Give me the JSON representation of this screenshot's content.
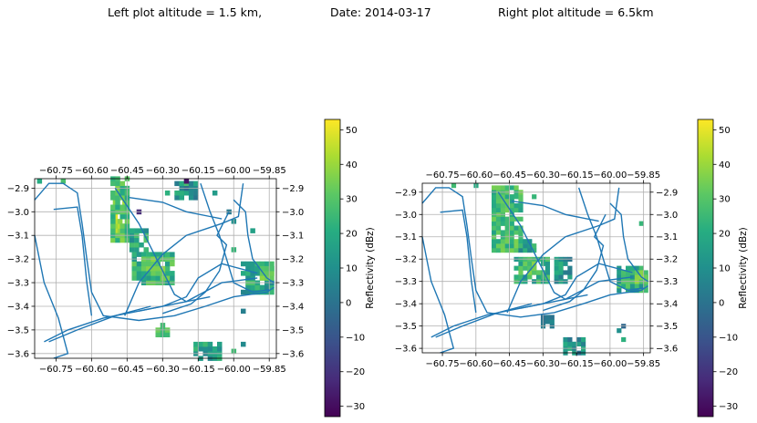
{
  "titles": {
    "left": "Left plot altitude = 1.5 km,",
    "date": "Date: 2014-03-17",
    "right": "Right plot altitude = 6.5km"
  },
  "colorbar": {
    "label": "Reflectivity (dBz)",
    "ticks": [
      -30,
      -20,
      -10,
      0,
      10,
      20,
      30,
      40,
      50
    ],
    "range": [
      -33,
      53
    ],
    "colormap": "viridis"
  },
  "chart_data": [
    {
      "type": "heatmap",
      "name": "left",
      "altitude_km": 1.5,
      "xlim": [
        -60.84,
        -59.82
      ],
      "ylim": [
        -3.62,
        -2.86
      ],
      "xticks": [
        -60.75,
        -60.6,
        -60.45,
        -60.3,
        -60.15,
        -60.0,
        -59.85
      ],
      "xtick_labels": [
        "−60.75",
        "−60.60",
        "−60.45",
        "−60.30",
        "−60.15",
        "−60.00",
        "−59.85"
      ],
      "yticks": [
        -2.9,
        -3.0,
        -3.1,
        -3.2,
        -3.3,
        -3.4,
        -3.5,
        -3.6
      ],
      "ytick_labels": [
        "−2.9",
        "−3.0",
        "−3.1",
        "−3.2",
        "−3.3",
        "−3.4",
        "−3.5",
        "−3.6"
      ],
      "grid": true,
      "cell_size_deg": 0.02,
      "blobs": [
        {
          "x": [
            -60.5,
            -60.45
          ],
          "y": [
            -3.08,
            -2.93
          ],
          "value": 44,
          "spread": 7
        },
        {
          "x": [
            -60.51,
            -60.44
          ],
          "y": [
            -3.12,
            -2.86
          ],
          "value": 28,
          "spread": 10
        },
        {
          "x": [
            -60.43,
            -60.36
          ],
          "y": [
            -3.16,
            -3.08
          ],
          "value": 18,
          "spread": 12
        },
        {
          "x": [
            -60.42,
            -60.25
          ],
          "y": [
            -3.3,
            -3.18
          ],
          "value": 24,
          "spread": 12
        },
        {
          "x": [
            -60.38,
            -60.3
          ],
          "y": [
            -3.26,
            -3.2
          ],
          "value": 36,
          "spread": 6
        },
        {
          "x": [
            -59.96,
            -59.83
          ],
          "y": [
            -3.34,
            -3.22
          ],
          "value": 18,
          "spread": 12
        },
        {
          "x": [
            -59.88,
            -59.83
          ],
          "y": [
            -3.28,
            -3.24
          ],
          "value": 34,
          "spread": 6
        },
        {
          "x": [
            -60.16,
            -60.06
          ],
          "y": [
            -3.62,
            -3.56
          ],
          "value": 16,
          "spread": 10
        },
        {
          "x": [
            -60.32,
            -60.28
          ],
          "y": [
            -3.52,
            -3.48
          ],
          "value": 28,
          "spread": 6
        },
        {
          "x": [
            -60.24,
            -60.16
          ],
          "y": [
            -2.94,
            -2.88
          ],
          "value": 12,
          "spread": 16
        }
      ],
      "isolated_cells": [
        {
          "x": -60.82,
          "y": -2.87,
          "value": 20
        },
        {
          "x": -60.72,
          "y": -2.87,
          "value": 28
        },
        {
          "x": -60.2,
          "y": -2.87,
          "value": -28
        },
        {
          "x": -60.28,
          "y": -2.92,
          "value": 22
        },
        {
          "x": -60.08,
          "y": -2.92,
          "value": 14
        },
        {
          "x": -60.02,
          "y": -3.0,
          "value": 2
        },
        {
          "x": -60.0,
          "y": -3.04,
          "value": 10
        },
        {
          "x": -59.92,
          "y": -3.08,
          "value": 16
        },
        {
          "x": -60.0,
          "y": -3.16,
          "value": 24
        },
        {
          "x": -59.96,
          "y": -3.42,
          "value": 4
        },
        {
          "x": -59.96,
          "y": -3.56,
          "value": 8
        },
        {
          "x": -60.0,
          "y": -3.59,
          "value": 26
        },
        {
          "x": -60.4,
          "y": -3.0,
          "value": -22
        }
      ],
      "tracks": [
        [
          [
            -60.84,
            -2.95
          ],
          [
            -60.78,
            -2.88
          ],
          [
            -60.72,
            -2.88
          ],
          [
            -60.66,
            -2.92
          ],
          [
            -60.64,
            -3.05
          ],
          [
            -60.62,
            -3.2
          ],
          [
            -60.6,
            -3.34
          ],
          [
            -60.55,
            -3.44
          ],
          [
            -60.4,
            -3.46
          ],
          [
            -60.25,
            -3.44
          ],
          [
            -60.12,
            -3.4
          ],
          [
            -60.0,
            -3.36
          ],
          [
            -59.86,
            -3.34
          ],
          [
            -59.83,
            -3.32
          ]
        ],
        [
          [
            -60.76,
            -2.99
          ],
          [
            -60.66,
            -2.98
          ],
          [
            -60.64,
            -3.1
          ],
          [
            -60.62,
            -3.3
          ],
          [
            -60.6,
            -3.44
          ]
        ],
        [
          [
            -60.84,
            -3.1
          ],
          [
            -60.8,
            -3.3
          ],
          [
            -60.74,
            -3.45
          ],
          [
            -60.7,
            -3.6
          ],
          [
            -60.76,
            -3.62
          ]
        ],
        [
          [
            -60.8,
            -3.55
          ],
          [
            -60.7,
            -3.5
          ],
          [
            -60.55,
            -3.45
          ],
          [
            -60.4,
            -3.42
          ],
          [
            -60.2,
            -3.38
          ],
          [
            -60.05,
            -3.3
          ],
          [
            -59.9,
            -3.28
          ]
        ],
        [
          [
            -60.46,
            -3.44
          ],
          [
            -60.4,
            -3.3
          ],
          [
            -60.3,
            -3.18
          ],
          [
            -60.2,
            -3.1
          ],
          [
            -60.05,
            -3.05
          ],
          [
            -59.98,
            -3.02
          ],
          [
            -59.96,
            -2.88
          ]
        ],
        [
          [
            -60.5,
            -2.9
          ],
          [
            -60.4,
            -3.05
          ],
          [
            -60.35,
            -3.15
          ],
          [
            -60.3,
            -3.25
          ],
          [
            -60.25,
            -3.35
          ],
          [
            -60.2,
            -3.38
          ],
          [
            -60.1,
            -3.36
          ]
        ],
        [
          [
            -60.14,
            -2.88
          ],
          [
            -60.1,
            -3.0
          ],
          [
            -60.06,
            -3.1
          ],
          [
            -60.03,
            -3.2
          ],
          [
            -60.0,
            -3.3
          ],
          [
            -59.92,
            -3.34
          ],
          [
            -59.85,
            -3.33
          ]
        ],
        [
          [
            -60.44,
            -2.94
          ],
          [
            -60.3,
            -2.96
          ],
          [
            -60.2,
            -3.0
          ],
          [
            -60.1,
            -3.02
          ],
          [
            -60.05,
            -3.03
          ]
        ],
        [
          [
            -60.4,
            -3.42
          ],
          [
            -60.3,
            -3.4
          ],
          [
            -60.2,
            -3.36
          ],
          [
            -60.15,
            -3.28
          ],
          [
            -60.05,
            -3.22
          ],
          [
            -59.9,
            -3.26
          ]
        ],
        [
          [
            -60.78,
            -3.55
          ],
          [
            -60.66,
            -3.5
          ],
          [
            -60.5,
            -3.44
          ],
          [
            -60.35,
            -3.4
          ]
        ],
        [
          [
            -60.3,
            -3.43
          ],
          [
            -60.18,
            -3.39
          ],
          [
            -60.12,
            -3.34
          ],
          [
            -60.06,
            -3.25
          ],
          [
            -60.03,
            -3.14
          ],
          [
            -60.07,
            -3.1
          ],
          [
            -60.02,
            -3.0
          ]
        ],
        [
          [
            -60.0,
            -2.95
          ],
          [
            -59.95,
            -3.0
          ],
          [
            -59.94,
            -3.1
          ],
          [
            -59.92,
            -3.2
          ],
          [
            -59.86,
            -3.28
          ],
          [
            -59.83,
            -3.3
          ]
        ]
      ]
    },
    {
      "type": "heatmap",
      "name": "right",
      "altitude_km": 6.5,
      "xlim": [
        -60.84,
        -59.82
      ],
      "ylim": [
        -3.62,
        -2.86
      ],
      "xticks": [
        -60.75,
        -60.6,
        -60.45,
        -60.3,
        -60.15,
        -60.0,
        -59.85
      ],
      "xtick_labels": [
        "−60.75",
        "−60.60",
        "−60.45",
        "−60.30",
        "−60.15",
        "−60.00",
        "−59.85"
      ],
      "yticks": [
        -2.9,
        -3.0,
        -3.1,
        -3.2,
        -3.3,
        -3.4,
        -3.5,
        -3.6
      ],
      "ytick_labels": [
        "−2.9",
        "−3.0",
        "−3.1",
        "−3.2",
        "−3.3",
        "−3.4",
        "−3.5",
        "−3.6"
      ],
      "grid": true,
      "cell_size_deg": 0.02,
      "blobs": [
        {
          "x": [
            -60.5,
            -60.44
          ],
          "y": [
            -3.06,
            -2.92
          ],
          "value": 40,
          "spread": 8
        },
        {
          "x": [
            -60.52,
            -60.4
          ],
          "y": [
            -3.16,
            -2.88
          ],
          "value": 26,
          "spread": 10
        },
        {
          "x": [
            -60.4,
            -60.33
          ],
          "y": [
            -3.16,
            -3.1
          ],
          "value": 16,
          "spread": 12
        },
        {
          "x": [
            -60.42,
            -60.28
          ],
          "y": [
            -3.3,
            -3.2
          ],
          "value": 22,
          "spread": 12
        },
        {
          "x": [
            -60.36,
            -60.3
          ],
          "y": [
            -3.26,
            -3.22
          ],
          "value": 32,
          "spread": 6
        },
        {
          "x": [
            -60.24,
            -60.18
          ],
          "y": [
            -3.3,
            -3.2
          ],
          "value": 12,
          "spread": 12
        },
        {
          "x": [
            -59.96,
            -59.83
          ],
          "y": [
            -3.34,
            -3.24
          ],
          "value": 20,
          "spread": 12
        },
        {
          "x": [
            -59.88,
            -59.83
          ],
          "y": [
            -3.3,
            -3.25
          ],
          "value": 36,
          "spread": 6
        },
        {
          "x": [
            -60.2,
            -60.12
          ],
          "y": [
            -3.62,
            -3.56
          ],
          "value": 10,
          "spread": 12
        },
        {
          "x": [
            -60.3,
            -60.26
          ],
          "y": [
            -3.5,
            -3.46
          ],
          "value": 6,
          "spread": 8
        }
      ],
      "isolated_cells": [
        {
          "x": -60.7,
          "y": -2.87,
          "value": 26
        },
        {
          "x": -60.6,
          "y": -2.87,
          "value": 20
        },
        {
          "x": -60.34,
          "y": -2.92,
          "value": 24
        },
        {
          "x": -59.86,
          "y": -3.04,
          "value": 24
        },
        {
          "x": -59.96,
          "y": -3.52,
          "value": 10
        },
        {
          "x": -59.94,
          "y": -3.56,
          "value": 22
        },
        {
          "x": -59.94,
          "y": -3.5,
          "value": -4
        }
      ],
      "tracks": [
        [
          [
            -60.84,
            -2.95
          ],
          [
            -60.78,
            -2.88
          ],
          [
            -60.72,
            -2.88
          ],
          [
            -60.66,
            -2.92
          ],
          [
            -60.64,
            -3.05
          ],
          [
            -60.62,
            -3.2
          ],
          [
            -60.6,
            -3.34
          ],
          [
            -60.55,
            -3.44
          ],
          [
            -60.4,
            -3.46
          ],
          [
            -60.25,
            -3.44
          ],
          [
            -60.12,
            -3.4
          ],
          [
            -60.0,
            -3.36
          ],
          [
            -59.86,
            -3.34
          ],
          [
            -59.83,
            -3.32
          ]
        ],
        [
          [
            -60.76,
            -2.99
          ],
          [
            -60.66,
            -2.98
          ],
          [
            -60.64,
            -3.1
          ],
          [
            -60.62,
            -3.3
          ],
          [
            -60.6,
            -3.44
          ]
        ],
        [
          [
            -60.84,
            -3.1
          ],
          [
            -60.8,
            -3.3
          ],
          [
            -60.74,
            -3.45
          ],
          [
            -60.7,
            -3.6
          ],
          [
            -60.76,
            -3.62
          ]
        ],
        [
          [
            -60.8,
            -3.55
          ],
          [
            -60.7,
            -3.5
          ],
          [
            -60.55,
            -3.45
          ],
          [
            -60.4,
            -3.42
          ],
          [
            -60.2,
            -3.38
          ],
          [
            -60.05,
            -3.3
          ],
          [
            -59.9,
            -3.28
          ]
        ],
        [
          [
            -60.46,
            -3.44
          ],
          [
            -60.4,
            -3.3
          ],
          [
            -60.3,
            -3.18
          ],
          [
            -60.2,
            -3.1
          ],
          [
            -60.05,
            -3.05
          ],
          [
            -59.98,
            -3.02
          ],
          [
            -59.96,
            -2.88
          ]
        ],
        [
          [
            -60.5,
            -2.9
          ],
          [
            -60.4,
            -3.05
          ],
          [
            -60.35,
            -3.15
          ],
          [
            -60.3,
            -3.25
          ],
          [
            -60.25,
            -3.35
          ],
          [
            -60.2,
            -3.38
          ],
          [
            -60.1,
            -3.36
          ]
        ],
        [
          [
            -60.14,
            -2.88
          ],
          [
            -60.1,
            -3.0
          ],
          [
            -60.06,
            -3.1
          ],
          [
            -60.03,
            -3.2
          ],
          [
            -60.0,
            -3.3
          ],
          [
            -59.92,
            -3.34
          ],
          [
            -59.85,
            -3.33
          ]
        ],
        [
          [
            -60.44,
            -2.94
          ],
          [
            -60.3,
            -2.96
          ],
          [
            -60.2,
            -3.0
          ],
          [
            -60.1,
            -3.02
          ],
          [
            -60.05,
            -3.03
          ]
        ],
        [
          [
            -60.4,
            -3.42
          ],
          [
            -60.3,
            -3.4
          ],
          [
            -60.2,
            -3.36
          ],
          [
            -60.15,
            -3.28
          ],
          [
            -60.05,
            -3.22
          ],
          [
            -59.9,
            -3.26
          ]
        ],
        [
          [
            -60.78,
            -3.55
          ],
          [
            -60.66,
            -3.5
          ],
          [
            -60.5,
            -3.44
          ],
          [
            -60.35,
            -3.4
          ]
        ],
        [
          [
            -60.3,
            -3.43
          ],
          [
            -60.18,
            -3.39
          ],
          [
            -60.12,
            -3.34
          ],
          [
            -60.06,
            -3.25
          ],
          [
            -60.03,
            -3.14
          ],
          [
            -60.07,
            -3.1
          ],
          [
            -60.02,
            -3.0
          ]
        ],
        [
          [
            -60.0,
            -2.95
          ],
          [
            -59.95,
            -3.0
          ],
          [
            -59.94,
            -3.1
          ],
          [
            -59.92,
            -3.2
          ],
          [
            -59.86,
            -3.28
          ],
          [
            -59.83,
            -3.3
          ]
        ]
      ]
    }
  ]
}
